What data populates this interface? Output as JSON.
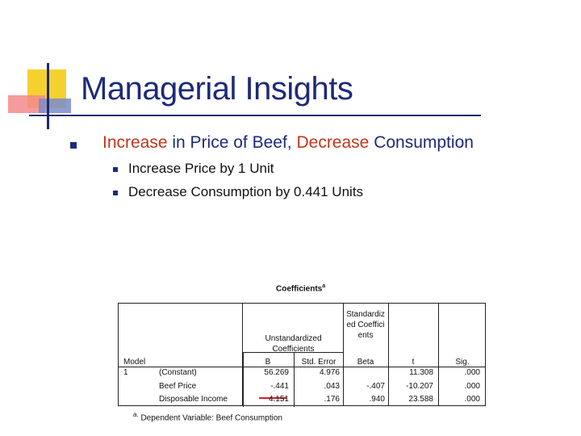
{
  "slide": {
    "title": "Managerial Insights",
    "bullet_main": {
      "part1": "Increase",
      "part2": " in Price of Beef, ",
      "part3": "Decrease",
      "part4": " Consumption"
    },
    "sub_bullets": [
      "Increase Price by 1 Unit",
      "Decrease Consumption by 0.441 Units"
    ]
  },
  "colors": {
    "title": "#1e2a78",
    "highlight": "#c0361f",
    "underline": "#d42020"
  },
  "table": {
    "title": "Coefficients",
    "title_marker": "a",
    "header": {
      "model": "Model",
      "unstd_group": "Unstandardized Coefficients",
      "std_group": "Standardized Coefficients",
      "b": "B",
      "std_error": "Std. Error",
      "beta": "Beta",
      "t": "t",
      "sig": "Sig."
    },
    "model_number": "1",
    "rows": [
      {
        "name": "(Constant)",
        "b": "56.269",
        "se": "4.976",
        "beta": "",
        "t": "11.308",
        "sig": ".000"
      },
      {
        "name": "Beef Price",
        "b": "-.441",
        "se": ".043",
        "beta": "-.407",
        "t": "-10.207",
        "sig": ".000"
      },
      {
        "name": "Disposable Income",
        "b": "4.151",
        "se": ".176",
        "beta": ".940",
        "t": "23.588",
        "sig": ".000"
      }
    ],
    "footnote_marker": "a.",
    "footnote": "Dependent Variable: Beef Consumption"
  }
}
